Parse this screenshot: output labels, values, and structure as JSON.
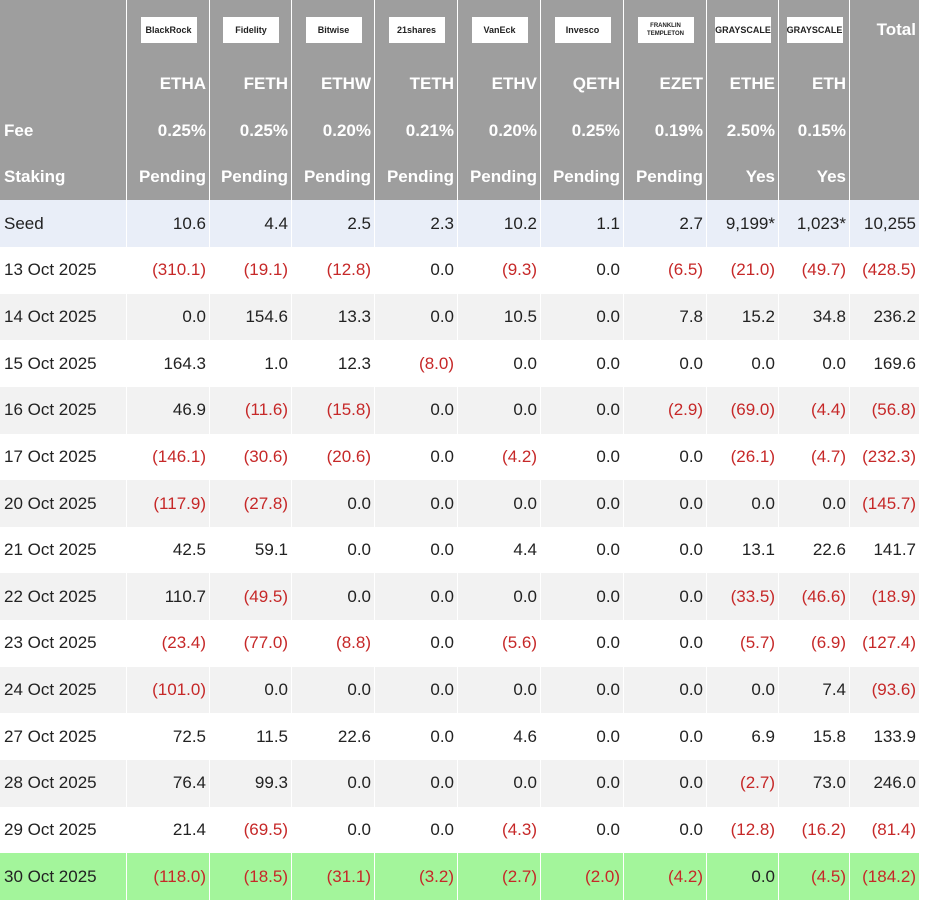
{
  "table": {
    "logos": [
      "BlackRock",
      "Fidelity",
      "Bitwise",
      "21shares",
      "VanEck",
      "Invesco",
      "FRANKLIN TEMPLETON",
      "GRAYSCALE",
      "GRAYSCALE"
    ],
    "total_label": "Total",
    "tickers": [
      "ETHA",
      "FETH",
      "ETHW",
      "TETH",
      "ETHV",
      "QETH",
      "EZET",
      "ETHE",
      "ETH"
    ],
    "rows": [
      [
        "Fee",
        "0.25%",
        "0.25%",
        "0.20%",
        "0.21%",
        "0.20%",
        "0.25%",
        "0.19%",
        "2.50%",
        "0.15%"
      ],
      [
        "Staking",
        "Pending",
        "Pending",
        "Pending",
        "Pending",
        "Pending",
        "Pending",
        "Pending",
        "Yes",
        "Yes"
      ],
      [
        "Seed",
        "10.6",
        "4.4",
        "2.5",
        "2.3",
        "10.2",
        "1.1",
        "2.7",
        "9,199*",
        "1,023*",
        "10,255"
      ],
      [
        "13 Oct 2025",
        "(310.1)",
        "(19.1)",
        "(12.8)",
        "0.0",
        "(9.3)",
        "0.0",
        "(6.5)",
        "(21.0)",
        "(49.7)",
        "(428.5)"
      ],
      [
        "14 Oct 2025",
        "0.0",
        "154.6",
        "13.3",
        "0.0",
        "10.5",
        "0.0",
        "7.8",
        "15.2",
        "34.8",
        "236.2"
      ],
      [
        "15 Oct 2025",
        "164.3",
        "1.0",
        "12.3",
        "(8.0)",
        "0.0",
        "0.0",
        "0.0",
        "0.0",
        "0.0",
        "169.6"
      ],
      [
        "16 Oct 2025",
        "46.9",
        "(11.6)",
        "(15.8)",
        "0.0",
        "0.0",
        "0.0",
        "(2.9)",
        "(69.0)",
        "(4.4)",
        "(56.8)"
      ],
      [
        "17 Oct 2025",
        "(146.1)",
        "(30.6)",
        "(20.6)",
        "0.0",
        "(4.2)",
        "0.0",
        "0.0",
        "(26.1)",
        "(4.7)",
        "(232.3)"
      ],
      [
        "20 Oct 2025",
        "(117.9)",
        "(27.8)",
        "0.0",
        "0.0",
        "0.0",
        "0.0",
        "0.0",
        "0.0",
        "0.0",
        "(145.7)"
      ],
      [
        "21 Oct 2025",
        "42.5",
        "59.1",
        "0.0",
        "0.0",
        "4.4",
        "0.0",
        "0.0",
        "13.1",
        "22.6",
        "141.7"
      ],
      [
        "22 Oct 2025",
        "110.7",
        "(49.5)",
        "0.0",
        "0.0",
        "0.0",
        "0.0",
        "0.0",
        "(33.5)",
        "(46.6)",
        "(18.9)"
      ],
      [
        "23 Oct 2025",
        "(23.4)",
        "(77.0)",
        "(8.8)",
        "0.0",
        "(5.6)",
        "0.0",
        "0.0",
        "(5.7)",
        "(6.9)",
        "(127.4)"
      ],
      [
        "24 Oct 2025",
        "(101.0)",
        "0.0",
        "0.0",
        "0.0",
        "0.0",
        "0.0",
        "0.0",
        "0.0",
        "7.4",
        "(93.6)"
      ],
      [
        "27 Oct 2025",
        "72.5",
        "11.5",
        "22.6",
        "0.0",
        "4.6",
        "0.0",
        "0.0",
        "6.9",
        "15.8",
        "133.9"
      ],
      [
        "28 Oct 2025",
        "76.4",
        "99.3",
        "0.0",
        "0.0",
        "0.0",
        "0.0",
        "0.0",
        "(2.7)",
        "73.0",
        "246.0"
      ],
      [
        "29 Oct 2025",
        "21.4",
        "(69.5)",
        "0.0",
        "0.0",
        "(4.3)",
        "0.0",
        "0.0",
        "(12.8)",
        "(16.2)",
        "(81.4)"
      ],
      [
        "30 Oct 2025",
        "(118.0)",
        "(18.5)",
        "(31.1)",
        "(3.2)",
        "(2.7)",
        "(2.0)",
        "(4.2)",
        "0.0",
        "(4.5)",
        "(184.2)"
      ]
    ]
  }
}
